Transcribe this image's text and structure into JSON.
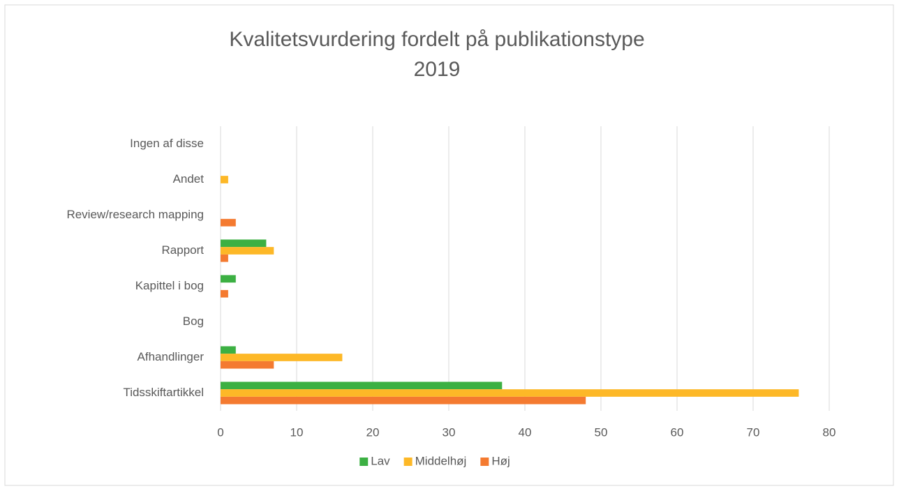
{
  "chart_data": {
    "type": "bar",
    "orientation": "horizontal",
    "title": [
      "Kvalitetsvurdering fordelt på publikationstype",
      "2019"
    ],
    "categories": [
      "Tidsskiftartikkel",
      "Afhandlinger",
      "Bog",
      "Kapittel i bog",
      "Rapport",
      "Review/research mapping",
      "Andet",
      "Ingen af disse"
    ],
    "series": [
      {
        "name": "Lav",
        "color": "#3cb043",
        "values": [
          37,
          2,
          0,
          2,
          6,
          0,
          0,
          0
        ]
      },
      {
        "name": "Middelhøj",
        "color": "#fdb827",
        "values": [
          76,
          16,
          0,
          0,
          7,
          0,
          1,
          0
        ]
      },
      {
        "name": "Høj",
        "color": "#f47a30",
        "values": [
          48,
          7,
          0,
          1,
          1,
          2,
          0,
          0
        ]
      }
    ],
    "xlim": [
      0,
      80
    ],
    "xticks": [
      0,
      10,
      20,
      30,
      40,
      50,
      60,
      70,
      80
    ],
    "grid": true,
    "legend": "bottom"
  }
}
